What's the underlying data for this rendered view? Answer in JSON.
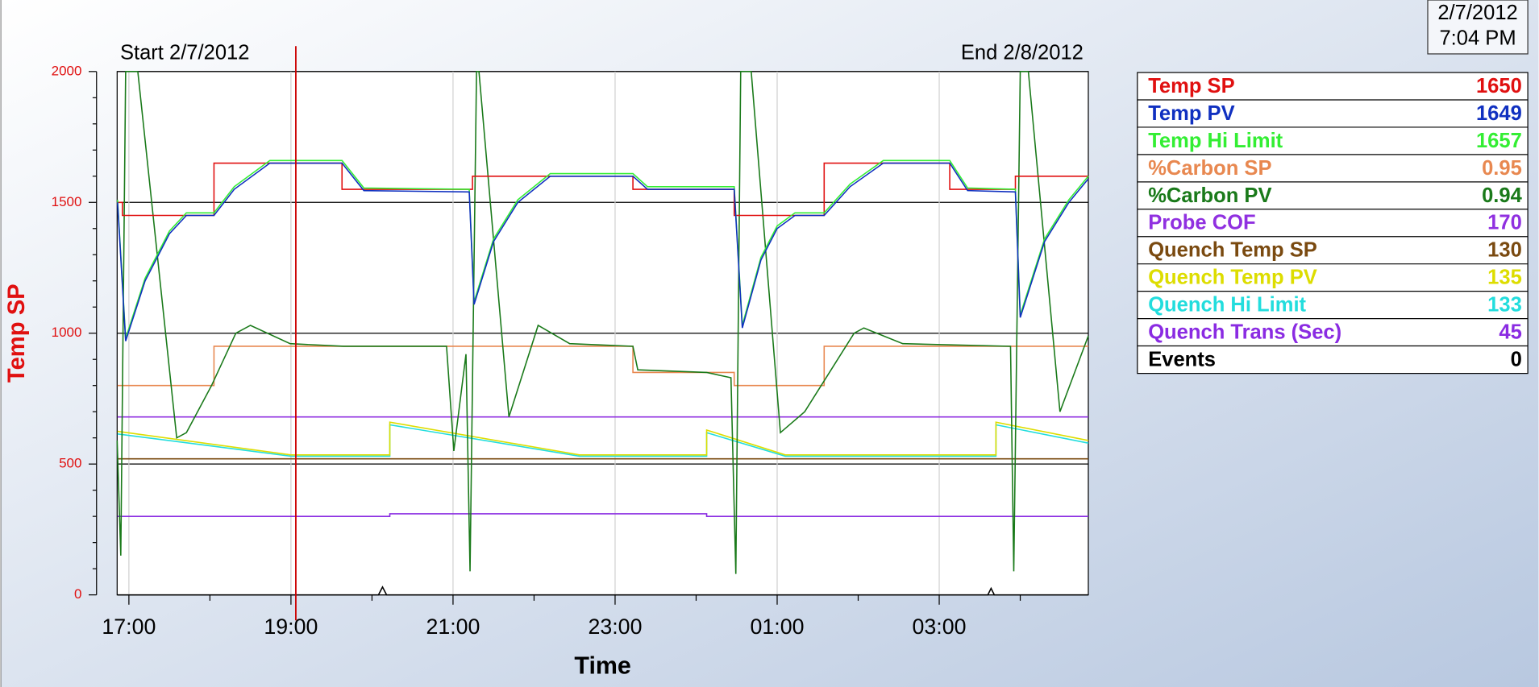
{
  "clock": {
    "date": "2/7/2012",
    "time": "7:04 PM"
  },
  "chart_data": {
    "type": "line",
    "start_label": "Start 2/7/2012",
    "end_label": "End 2/8/2012",
    "y_label": "Temp SP",
    "x_label": "Time",
    "xlim": [
      16.855,
      28.84
    ],
    "ylim": [
      0,
      2000
    ],
    "xticks": [
      {
        "value": 17,
        "label": "17:00"
      },
      {
        "value": 19,
        "label": "19:00"
      },
      {
        "value": 21,
        "label": "21:00"
      },
      {
        "value": 23,
        "label": "23:00"
      },
      {
        "value": 25,
        "label": "01:00"
      },
      {
        "value": 27,
        "label": "03:00"
      }
    ],
    "xticks_minor": [
      18,
      20,
      22,
      24,
      26,
      28
    ],
    "yticks": [
      0,
      500,
      1000,
      1500,
      2000
    ],
    "yticks_minor": [
      100,
      200,
      300,
      400,
      600,
      700,
      800,
      900,
      1100,
      1200,
      1300,
      1400,
      1600,
      1700,
      1800,
      1900
    ],
    "grid": true,
    "cursor_x": 19.06,
    "cursor_color": "#cc0000",
    "series": [
      {
        "name": "Temp SP",
        "color": "#e01010",
        "current": 1650,
        "x": [
          16.86,
          16.92,
          16.92,
          18.05,
          18.05,
          19.63,
          19.63,
          21.24,
          21.24,
          23.22,
          23.22,
          24.47,
          24.47,
          25.58,
          25.58,
          27.13,
          27.13,
          27.94,
          27.94,
          28.84
        ],
        "values": [
          1500,
          1500,
          1450,
          1450,
          1650,
          1650,
          1550,
          1550,
          1600,
          1600,
          1550,
          1550,
          1450,
          1450,
          1650,
          1650,
          1550,
          1550,
          1600,
          1600
        ]
      },
      {
        "name": "Temp PV",
        "color": "#1030c0",
        "current": 1649,
        "x": [
          16.86,
          16.96,
          17.2,
          17.5,
          17.71,
          18.05,
          18.3,
          18.74,
          19.63,
          19.9,
          21.2,
          21.26,
          21.5,
          21.8,
          22.2,
          23.22,
          23.4,
          24.47,
          24.57,
          24.8,
          25.0,
          25.22,
          25.58,
          25.9,
          26.31,
          27.13,
          27.35,
          27.94,
          28.0,
          28.3,
          28.6,
          28.84
        ],
        "values": [
          1500,
          970,
          1200,
          1380,
          1450,
          1450,
          1550,
          1650,
          1650,
          1545,
          1540,
          1110,
          1350,
          1500,
          1600,
          1600,
          1550,
          1550,
          1020,
          1280,
          1400,
          1450,
          1450,
          1560,
          1650,
          1650,
          1545,
          1540,
          1060,
          1350,
          1500,
          1590
        ]
      },
      {
        "name": "Temp Hi Limit",
        "color": "#33ee33",
        "current": 1657,
        "x": [
          16.86,
          16.96,
          17.2,
          17.5,
          17.71,
          18.05,
          18.3,
          18.74,
          19.63,
          19.9,
          21.2,
          21.26,
          21.5,
          21.8,
          22.2,
          23.22,
          23.4,
          24.47,
          24.57,
          24.8,
          25.0,
          25.22,
          25.58,
          25.9,
          26.31,
          27.13,
          27.35,
          27.94,
          28.0,
          28.3,
          28.6,
          28.84
        ],
        "values": [
          1510,
          980,
          1210,
          1390,
          1460,
          1460,
          1560,
          1660,
          1660,
          1555,
          1550,
          1120,
          1360,
          1510,
          1610,
          1610,
          1560,
          1560,
          1030,
          1290,
          1410,
          1460,
          1460,
          1570,
          1660,
          1660,
          1555,
          1550,
          1070,
          1360,
          1510,
          1600
        ]
      },
      {
        "name": "%Carbon SP",
        "color": "#e88850",
        "current": 0.95,
        "x": [
          16.86,
          18.05,
          18.05,
          23.22,
          23.22,
          24.47,
          24.47,
          25.58,
          25.58,
          28.84
        ],
        "values": [
          800,
          800,
          950,
          950,
          850,
          850,
          800,
          800,
          950,
          950
        ]
      },
      {
        "name": "%Carbon PV",
        "color": "#1a7a1a",
        "current": 0.94,
        "x": [
          16.855,
          16.9,
          16.96,
          17.11,
          17.59,
          17.71,
          18.02,
          18.32,
          18.5,
          18.99,
          19.65,
          20.92,
          21.01,
          21.16,
          21.21,
          21.29,
          21.32,
          21.69,
          22.05,
          22.44,
          23.22,
          23.28,
          24.13,
          24.43,
          24.49,
          24.55,
          24.68,
          25.04,
          25.34,
          25.95,
          26.07,
          26.55,
          27.88,
          27.92,
          28.0,
          28.1,
          28.49,
          28.84
        ],
        "values": [
          590,
          150,
          2000,
          2000,
          600,
          620,
          800,
          1000,
          1030,
          960,
          950,
          950,
          550,
          920,
          90,
          2000,
          2000,
          680,
          1030,
          960,
          950,
          860,
          850,
          830,
          80,
          2000,
          2000,
          620,
          700,
          1000,
          1020,
          960,
          950,
          90,
          2000,
          2000,
          700,
          990
        ]
      },
      {
        "name": "Probe COF",
        "color": "#9030e0",
        "current": 170,
        "x": [
          16.86,
          28.84
        ],
        "values": [
          680,
          680
        ]
      },
      {
        "name": "Quench Temp SP",
        "color": "#7a4a10",
        "current": 130,
        "x": [
          16.86,
          28.84
        ],
        "values": [
          520,
          520
        ]
      },
      {
        "name": "Quench Temp PV",
        "color": "#dddd00",
        "current": 135,
        "x": [
          16.86,
          19.0,
          20.22,
          20.22,
          22.56,
          24.13,
          24.13,
          25.1,
          27.7,
          27.7,
          28.84
        ],
        "values": [
          625,
          535,
          535,
          660,
          535,
          535,
          630,
          535,
          535,
          660,
          590
        ]
      },
      {
        "name": "Quench Hi Limit",
        "color": "#22dddd",
        "current": 133,
        "x": [
          16.86,
          19.0,
          20.22,
          20.22,
          22.56,
          24.13,
          24.13,
          25.1,
          27.7,
          27.7,
          28.84
        ],
        "values": [
          615,
          530,
          530,
          650,
          530,
          530,
          620,
          530,
          530,
          650,
          580
        ]
      },
      {
        "name": "Quench Trans (Sec)",
        "color": "#8a2be2",
        "current": 45,
        "x": [
          16.86,
          20.22,
          20.22,
          24.13,
          24.13,
          28.84
        ],
        "values": [
          300,
          300,
          310,
          310,
          300,
          300
        ]
      },
      {
        "name": "Events",
        "color": "#000000",
        "current": 0,
        "x": [
          16.86,
          20.08,
          20.13,
          20.18,
          27.6,
          27.64,
          27.68,
          28.84
        ],
        "values": [
          0,
          0,
          30,
          0,
          0,
          25,
          0,
          0
        ]
      }
    ]
  }
}
